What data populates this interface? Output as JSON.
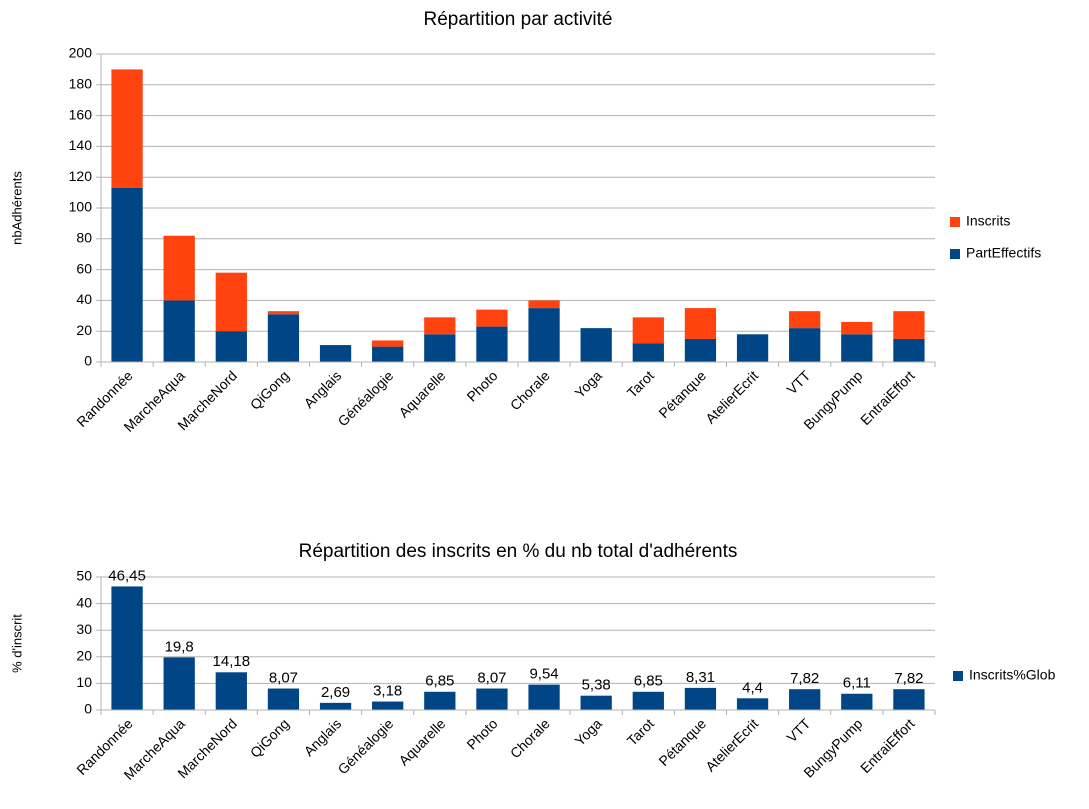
{
  "chart_data": [
    {
      "type": "bar",
      "stacked": true,
      "title": "Répartition par activité",
      "y_label": "nbAdhérents",
      "categories": [
        "Randonnée",
        "MarcheAqua",
        "MarcheNord",
        "QiGong",
        "Anglais",
        "Généalogie",
        "Aquarelle",
        "Photo",
        "Chorale",
        "Yoga",
        "Tarot",
        "Pétanque",
        "AtelierEcrit",
        "VTT",
        "BungyPump",
        "EntraiEffort"
      ],
      "series": [
        {
          "name": "PartEffectifs",
          "color": "#004586",
          "values": [
            113,
            40,
            20,
            31,
            11,
            10,
            18,
            23,
            35,
            22,
            12,
            15,
            18,
            22,
            18,
            15
          ]
        },
        {
          "name": "Inscrits",
          "color": "#ff420e",
          "values": [
            77,
            42,
            38,
            2,
            0,
            4,
            11,
            11,
            5,
            0,
            17,
            20,
            0,
            11,
            8,
            18
          ]
        }
      ],
      "ylim": [
        0,
        200
      ],
      "yticks": [
        0,
        20,
        40,
        60,
        80,
        100,
        120,
        140,
        160,
        180,
        200
      ],
      "grid": true,
      "legend": "right"
    },
    {
      "type": "bar",
      "stacked": false,
      "title": "Répartition des inscrits en % du nb total d'adhérents",
      "y_label": "% d'inscrit",
      "categories": [
        "Randonnée",
        "MarcheAqua",
        "MarcheNord",
        "QiGong",
        "Anglais",
        "Généalogie",
        "Aquarelle",
        "Photo",
        "Chorale",
        "Yoga",
        "Tarot",
        "Pétanque",
        "AtelierEcrit",
        "VTT",
        "BungyPump",
        "EntraiEffort"
      ],
      "series": [
        {
          "name": "Inscrits%Glob",
          "color": "#004586",
          "values": [
            46.45,
            19.8,
            14.18,
            8.07,
            2.69,
            3.18,
            6.85,
            8.07,
            9.54,
            5.38,
            6.85,
            8.31,
            4.4,
            7.82,
            6.11,
            7.82
          ],
          "value_labels": [
            "46,45",
            "19,8",
            "14,18",
            "8,07",
            "2,69",
            "3,18",
            "6,85",
            "8,07",
            "9,54",
            "5,38",
            "6,85",
            "8,31",
            "4,4",
            "7,82",
            "6,11",
            "7,82"
          ]
        }
      ],
      "ylim": [
        0,
        50
      ],
      "yticks": [
        0,
        10,
        20,
        30,
        40,
        50
      ],
      "grid": true,
      "legend": "right"
    }
  ]
}
